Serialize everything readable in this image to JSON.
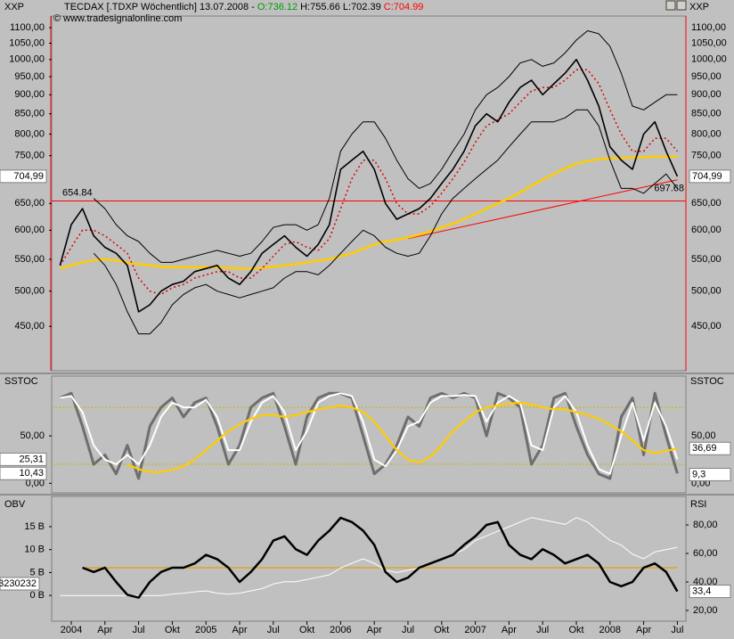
{
  "chart_data": [
    {
      "type": "line",
      "symbol": "XXP",
      "title": "TECDAX [.TDXP  Wöchentlich] 13.07.2008 -",
      "open": "O:736.12",
      "high": "H:755.66",
      "low": "L:702.39",
      "close": "C:704.99",
      "copyright": "© www.tradesignalonline.com",
      "log": true,
      "ylim": [
        394,
        1139
      ],
      "yticks": [
        {
          "value": 450,
          "label": "450,00"
        },
        {
          "value": 500,
          "label": "500,00"
        },
        {
          "value": 550,
          "label": "550,00"
        },
        {
          "value": 600,
          "label": "600,00"
        },
        {
          "value": 650,
          "label": "650,00"
        },
        {
          "value": 750,
          "label": "750,00"
        },
        {
          "value": 800,
          "label": "800,00"
        },
        {
          "value": 850,
          "label": "850,00"
        },
        {
          "value": 900,
          "label": "900,00"
        },
        {
          "value": 950,
          "label": "950,00"
        },
        {
          "value": 1000,
          "label": "1000,00"
        },
        {
          "value": 1050,
          "label": "1050,00"
        },
        {
          "value": 1100,
          "label": "1100,00"
        }
      ],
      "hline": {
        "value": 654.84,
        "label": "654.84",
        "color": "#ff0000"
      },
      "trendline": {
        "start": 585,
        "end": 697.68,
        "label": "697.68",
        "color": "#ff0000"
      },
      "markers": [
        {
          "value": 704.99,
          "label": "704,99",
          "side": "both"
        }
      ],
      "series": [
        {
          "color": "#ffcc00",
          "width": 2.5,
          "values": [
            535,
            540,
            545,
            548,
            550,
            548,
            545,
            542,
            540,
            538,
            537,
            537,
            537,
            537,
            537,
            536,
            535,
            535,
            536,
            538,
            540,
            542,
            545,
            548,
            550,
            555,
            560,
            567,
            575,
            580,
            583,
            587,
            592,
            598,
            605,
            612,
            620,
            630,
            640,
            650,
            660,
            672,
            685,
            698,
            710,
            722,
            732,
            738,
            742,
            744,
            745,
            746,
            747,
            748,
            748,
            748
          ]
        },
        {
          "color": "#000000",
          "width": 1,
          "values": [
            null,
            null,
            null,
            660,
            640,
            610,
            590,
            580,
            560,
            545,
            545,
            550,
            555,
            560,
            565,
            560,
            555,
            560,
            580,
            605,
            610,
            610,
            600,
            610,
            660,
            760,
            800,
            830,
            830,
            790,
            740,
            700,
            680,
            690,
            720,
            760,
            800,
            860,
            900,
            920,
            950,
            990,
            1000,
            980,
            990,
            1020,
            1060,
            1090,
            1080,
            1040,
            960,
            870,
            860,
            880,
            900,
            900
          ]
        },
        {
          "color": "#000000",
          "width": 1,
          "values": [
            null,
            null,
            null,
            560,
            540,
            510,
            470,
            440,
            440,
            455,
            480,
            495,
            505,
            510,
            500,
            495,
            490,
            495,
            500,
            505,
            520,
            530,
            530,
            525,
            540,
            560,
            580,
            600,
            590,
            570,
            560,
            555,
            560,
            590,
            630,
            660,
            680,
            700,
            720,
            740,
            770,
            800,
            830,
            830,
            830,
            840,
            860,
            860,
            820,
            740,
            680,
            680,
            670,
            690,
            710,
            680
          ]
        },
        {
          "color": "#e00000",
          "width": 1.5,
          "dash": true,
          "values": [
            540,
            570,
            600,
            600,
            590,
            575,
            560,
            520,
            500,
            495,
            505,
            510,
            520,
            525,
            530,
            530,
            520,
            520,
            535,
            555,
            575,
            580,
            570,
            565,
            585,
            640,
            700,
            740,
            740,
            700,
            650,
            630,
            630,
            645,
            670,
            700,
            735,
            780,
            820,
            835,
            850,
            880,
            910,
            920,
            920,
            940,
            970,
            970,
            930,
            860,
            800,
            760,
            760,
            790,
            790,
            760
          ]
        },
        {
          "color": "#000000",
          "width": 1.6,
          "values": [
            540,
            610,
            640,
            590,
            570,
            560,
            540,
            470,
            480,
            500,
            510,
            515,
            530,
            535,
            540,
            520,
            510,
            530,
            560,
            575,
            590,
            570,
            555,
            575,
            610,
            720,
            740,
            760,
            720,
            650,
            620,
            630,
            640,
            660,
            690,
            720,
            760,
            820,
            850,
            830,
            880,
            920,
            940,
            900,
            930,
            960,
            1000,
            940,
            870,
            770,
            740,
            720,
            800,
            830,
            760,
            704.99
          ]
        }
      ]
    },
    {
      "type": "line",
      "title": "SSTOC",
      "ylim": [
        -10,
        113
      ],
      "yticks": [
        {
          "value": 0,
          "label": "0,00"
        },
        {
          "value": 50,
          "label": "50,00"
        }
      ],
      "levels": [
        20,
        80
      ],
      "markers": [
        {
          "value": 25.31,
          "label": "25,31",
          "side": "left"
        },
        {
          "value": 10.43,
          "label": "10,43",
          "side": "left"
        },
        {
          "value": 36.69,
          "label": "36,69",
          "side": "right"
        },
        {
          "value": 9.3,
          "label": "9,3",
          "side": "right"
        }
      ],
      "series": [
        {
          "color": "#6e6e6e",
          "width": 3,
          "values": [
            90,
            95,
            60,
            20,
            30,
            10,
            40,
            5,
            60,
            80,
            90,
            70,
            85,
            90,
            60,
            20,
            40,
            80,
            90,
            95,
            60,
            20,
            70,
            90,
            95,
            95,
            90,
            50,
            10,
            20,
            40,
            70,
            60,
            90,
            95,
            90,
            95,
            90,
            50,
            95,
            90,
            80,
            20,
            40,
            90,
            95,
            60,
            30,
            10,
            5,
            70,
            90,
            30,
            95,
            50,
            10.43
          ]
        },
        {
          "color": "#ffffff",
          "width": 2,
          "values": [
            90,
            92,
            75,
            40,
            25,
            20,
            30,
            20,
            40,
            70,
            85,
            80,
            80,
            88,
            70,
            35,
            35,
            65,
            85,
            92,
            75,
            35,
            55,
            85,
            92,
            95,
            92,
            65,
            25,
            18,
            35,
            60,
            65,
            85,
            92,
            92,
            93,
            92,
            65,
            85,
            92,
            85,
            40,
            35,
            80,
            92,
            75,
            40,
            15,
            10,
            50,
            85,
            45,
            85,
            60,
            25.31
          ]
        },
        {
          "color": "#ffcc00",
          "width": 2.2,
          "values": [
            null,
            null,
            null,
            null,
            null,
            null,
            20,
            15,
            12,
            12,
            14,
            18,
            25,
            35,
            45,
            55,
            62,
            68,
            72,
            72,
            70,
            72,
            75,
            78,
            80,
            82,
            80,
            75,
            65,
            50,
            35,
            25,
            22,
            28,
            40,
            55,
            65,
            75,
            80,
            82,
            84,
            85,
            83,
            80,
            78,
            78,
            75,
            72,
            68,
            62,
            55,
            45,
            35,
            32,
            34,
            36.69
          ]
        }
      ]
    },
    {
      "type": "line",
      "title": "OBV",
      "y2title": "RSI",
      "ylim": [
        -5.6,
        21.6
      ],
      "yticks": [
        {
          "value": 0,
          "label": "0 B"
        },
        {
          "value": 5,
          "label": "5 B"
        },
        {
          "value": 10,
          "label": "10 B"
        },
        {
          "value": 15,
          "label": "15 B"
        }
      ],
      "y2lim": [
        12.5,
        100
      ],
      "y2ticks": [
        {
          "value": 20,
          "label": "20,00"
        },
        {
          "value": 40,
          "label": "40,00"
        },
        {
          "value": 60,
          "label": "60,00"
        },
        {
          "value": 80,
          "label": "80,00"
        }
      ],
      "y2levels": [
        50
      ],
      "obv_label": "3230232",
      "markers": [
        {
          "value": 33.4,
          "label": "33,4",
          "side": "right",
          "axis": "y2"
        }
      ],
      "categories": [
        null,
        "2004",
        null,
        null,
        "Apr",
        null,
        null,
        "Jul",
        null,
        null,
        "Okt",
        null,
        null,
        "2005",
        null,
        null,
        "Apr",
        null,
        null,
        "Jul",
        null,
        null,
        "Okt",
        null,
        null,
        "2006",
        null,
        null,
        "Apr",
        null,
        null,
        "Jul",
        null,
        null,
        "Okt",
        null,
        null,
        "2007",
        null,
        null,
        "Apr",
        null,
        null,
        "Jul",
        null,
        null,
        "Okt",
        null,
        null,
        "2008",
        null,
        null,
        "Apr",
        null,
        null,
        "Jul"
      ],
      "series": [
        {
          "color": "#ffffff",
          "width": 1,
          "values": [
            0,
            0,
            0,
            0,
            0,
            0,
            0,
            0,
            0,
            0,
            0.3,
            0.5,
            0.8,
            1,
            0.5,
            0.3,
            0.5,
            1,
            1.5,
            2.5,
            3,
            3,
            3.5,
            4,
            4.5,
            6,
            7,
            8,
            7,
            5.5,
            5,
            5.5,
            6,
            7,
            8,
            9,
            10,
            12,
            13,
            14,
            15,
            16,
            17,
            16.5,
            16,
            15.5,
            17,
            16,
            14,
            12,
            11,
            9,
            8,
            9.5,
            10,
            10.5
          ]
        },
        {
          "color": "#000000",
          "width": 2.5,
          "axis": "y2",
          "values": [
            null,
            null,
            50,
            47,
            50,
            40,
            31,
            29,
            40,
            47,
            50,
            50,
            53,
            59,
            56,
            50,
            40,
            47,
            56,
            69,
            72,
            63,
            59,
            69,
            76,
            85,
            82,
            76,
            66,
            47,
            40,
            43,
            50,
            53,
            56,
            59,
            66,
            72,
            80,
            82,
            66,
            59,
            56,
            63,
            59,
            53,
            56,
            59,
            53,
            40,
            37,
            40,
            50,
            53,
            47,
            33.4
          ]
        }
      ]
    }
  ]
}
